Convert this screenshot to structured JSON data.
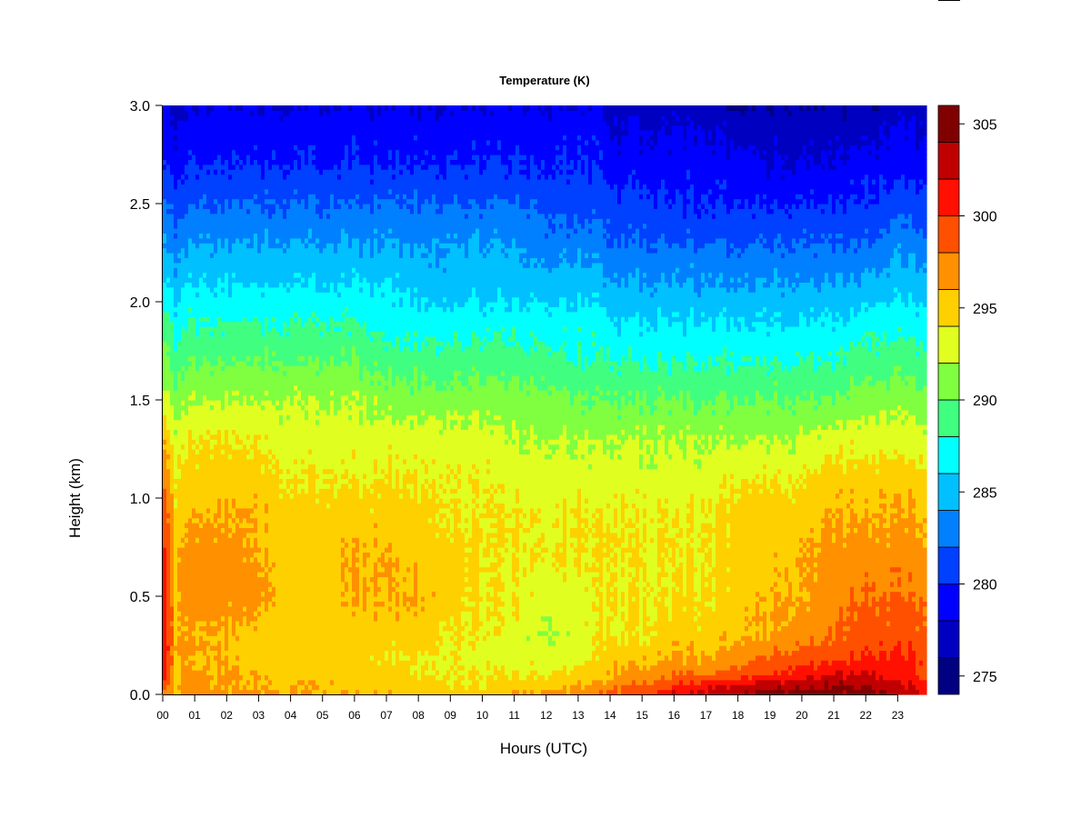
{
  "chart_data": {
    "type": "heatmap",
    "title": "Temperature (K)",
    "xlabel": "Hours (UTC)",
    "ylabel": "Height (km)",
    "x_tick_labels": [
      "00",
      "01",
      "02",
      "03",
      "04",
      "05",
      "06",
      "07",
      "08",
      "09",
      "10",
      "11",
      "12",
      "13",
      "14",
      "15",
      "16",
      "17",
      "18",
      "19",
      "20",
      "21",
      "22",
      "23"
    ],
    "x_range": [
      0,
      23.9
    ],
    "y_ticks": [
      0.0,
      0.5,
      1.0,
      1.5,
      2.0,
      2.5,
      3.0
    ],
    "y_tick_labels": [
      "0.0",
      "0.5",
      "1.0",
      "1.5",
      "2.0",
      "2.5",
      "3.0"
    ],
    "y_range": [
      0,
      3.0
    ],
    "colorbar": {
      "levels": [
        274,
        276,
        278,
        280,
        282,
        284,
        286,
        288,
        290,
        292,
        294,
        296,
        298,
        300,
        302,
        304,
        306
      ],
      "colors": [
        "#000080",
        "#0000C0",
        "#0000FF",
        "#0040FF",
        "#0080FF",
        "#00C0FF",
        "#00FFFF",
        "#40FF80",
        "#80FF40",
        "#E0FF20",
        "#FFD000",
        "#FF9000",
        "#FF5000",
        "#FF1000",
        "#C00000",
        "#800000"
      ],
      "tick_values": [
        275,
        280,
        285,
        290,
        295,
        300,
        305
      ],
      "tick_labels": [
        "275",
        "280",
        "285",
        "290",
        "295",
        "300",
        "305"
      ]
    },
    "profile_heights_km": [
      0.0,
      0.05,
      0.1,
      0.2,
      0.3,
      0.5,
      0.7,
      0.9,
      1.1,
      1.3,
      1.5,
      1.7,
      1.9,
      2.1,
      2.3,
      2.5,
      2.7,
      2.9,
      3.0
    ],
    "profile_hours": [
      0,
      0.4,
      1,
      2,
      3,
      4,
      5,
      6,
      7,
      8,
      9,
      10,
      11,
      12,
      13,
      13.6,
      14,
      15,
      16,
      17,
      18,
      19,
      20,
      21,
      22,
      23,
      23.9
    ],
    "temperature_profiles": [
      [
        297,
        299,
        302,
        302,
        302,
        302,
        301,
        300,
        298,
        296,
        293,
        291,
        289,
        286,
        284,
        282,
        280,
        279,
        278
      ],
      [
        296,
        296,
        296,
        296,
        296,
        296,
        296,
        295,
        294,
        293,
        291,
        289,
        287,
        285,
        283,
        281,
        279,
        278,
        277
      ],
      [
        297,
        297,
        296,
        296,
        296,
        297,
        297,
        296,
        295,
        294,
        292,
        290,
        288,
        286,
        284,
        282,
        280,
        279,
        278
      ],
      [
        297,
        296,
        296,
        296,
        296,
        297,
        297,
        296,
        295,
        294,
        292,
        290,
        288,
        286,
        284,
        282,
        280,
        279,
        278
      ],
      [
        296,
        296,
        296,
        295,
        295,
        297,
        296,
        296,
        295,
        294,
        292,
        290,
        288,
        286,
        284,
        282,
        280,
        279,
        278
      ],
      [
        296,
        296,
        295,
        295,
        295,
        295,
        295,
        295,
        294,
        293,
        292,
        290,
        288,
        286,
        284,
        282,
        280,
        279,
        278
      ],
      [
        296,
        296,
        295,
        295,
        295,
        295,
        295,
        295,
        294,
        293,
        292,
        290,
        288,
        286,
        284,
        282,
        280,
        279,
        278
      ],
      [
        296,
        295,
        295,
        295,
        295,
        296,
        296,
        295,
        294,
        293,
        292,
        290,
        288,
        286,
        284,
        282,
        280,
        279,
        278
      ],
      [
        296,
        295,
        295,
        294,
        295,
        296,
        296,
        295,
        294,
        293,
        291,
        289,
        287,
        286,
        284,
        282,
        280,
        279,
        278
      ],
      [
        295,
        295,
        294,
        294,
        295,
        296,
        295,
        295,
        294,
        293,
        291,
        289,
        287,
        285,
        284,
        282,
        280,
        279,
        278
      ],
      [
        295,
        294,
        294,
        294,
        294,
        295,
        295,
        294,
        294,
        293,
        291,
        289,
        287,
        285,
        284,
        282,
        280,
        279,
        278
      ],
      [
        295,
        294,
        294,
        293,
        294,
        294,
        294,
        294,
        294,
        293,
        291,
        289,
        287,
        285,
        284,
        282,
        280,
        279,
        278
      ],
      [
        296,
        295,
        294,
        293,
        293,
        294,
        294,
        294,
        293,
        292,
        291,
        289,
        287,
        285,
        284,
        282,
        280,
        279,
        278
      ],
      [
        297,
        295,
        294,
        293,
        292,
        293,
        294,
        294,
        293,
        292,
        291,
        289,
        287,
        285,
        283,
        282,
        280,
        279,
        278
      ],
      [
        297,
        296,
        295,
        293,
        293,
        293,
        294,
        294,
        293,
        292,
        290,
        288,
        287,
        285,
        283,
        281,
        280,
        279,
        278
      ],
      [
        298,
        296,
        295,
        294,
        294,
        294,
        294,
        294,
        293,
        292,
        290,
        288,
        287,
        285,
        283,
        281,
        280,
        279,
        278
      ],
      [
        299,
        297,
        296,
        295,
        294,
        294,
        294,
        294,
        293,
        292,
        290,
        288,
        286,
        284,
        282,
        281,
        279,
        278,
        277
      ],
      [
        300,
        298,
        297,
        295,
        294,
        294,
        294,
        294,
        293,
        292,
        290,
        288,
        286,
        284,
        282,
        281,
        279,
        278,
        277
      ],
      [
        302,
        300,
        298,
        296,
        295,
        294,
        294,
        294,
        293,
        292,
        290,
        288,
        286,
        284,
        282,
        280,
        279,
        278,
        277
      ],
      [
        303,
        301,
        298,
        296,
        295,
        294,
        294,
        294,
        293,
        292,
        290,
        288,
        286,
        284,
        282,
        280,
        279,
        278,
        277
      ],
      [
        304,
        302,
        299,
        297,
        296,
        295,
        295,
        295,
        294,
        292,
        290,
        288,
        286,
        284,
        282,
        280,
        279,
        277,
        276
      ],
      [
        305,
        303,
        300,
        298,
        296,
        296,
        295,
        295,
        294,
        292,
        290,
        288,
        286,
        284,
        282,
        280,
        278,
        277,
        276
      ],
      [
        305,
        303,
        301,
        299,
        297,
        296,
        296,
        295,
        294,
        292,
        290,
        288,
        286,
        284,
        282,
        280,
        278,
        277,
        276
      ],
      [
        305,
        304,
        302,
        299,
        298,
        297,
        297,
        296,
        295,
        293,
        290,
        288,
        286,
        284,
        282,
        280,
        278,
        277,
        276
      ],
      [
        305,
        304,
        302,
        300,
        299,
        298,
        297,
        296,
        295,
        293,
        291,
        289,
        287,
        284,
        282,
        280,
        279,
        277,
        276
      ],
      [
        303,
        302,
        301,
        300,
        299,
        298,
        297,
        296,
        295,
        293,
        291,
        289,
        287,
        285,
        283,
        281,
        279,
        278,
        277
      ],
      [
        302,
        301,
        300,
        300,
        299,
        298,
        297,
        296,
        295,
        293,
        291,
        289,
        287,
        285,
        283,
        281,
        279,
        278,
        277
      ]
    ]
  }
}
